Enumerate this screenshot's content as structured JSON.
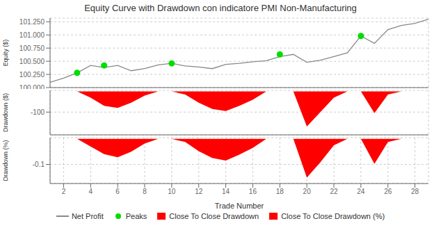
{
  "chart_data": [
    {
      "type": "line",
      "title": "Equity Curve with Drawdown con indicatore PMI Non-Manufacturing",
      "x": [
        1,
        2,
        3,
        4,
        5,
        6,
        7,
        8,
        9,
        10,
        11,
        12,
        13,
        14,
        15,
        16,
        17,
        18,
        19,
        20,
        21,
        22,
        23,
        24,
        25,
        26,
        27,
        28,
        29
      ],
      "xlim": [
        1,
        29
      ],
      "xticks": [
        2,
        4,
        6,
        8,
        10,
        12,
        14,
        16,
        18,
        20,
        22,
        24,
        26,
        28
      ],
      "ylim": [
        100.0,
        101.32
      ],
      "yticks": [
        {
          "value": 100.0,
          "label": "100.000"
        },
        {
          "value": 100.25,
          "label": "100.250"
        },
        {
          "value": 100.5,
          "label": "100.500"
        },
        {
          "value": 100.75,
          "label": "100.750"
        },
        {
          "value": 101.0,
          "label": "101.000"
        },
        {
          "value": 101.25,
          "label": "101.250"
        }
      ],
      "ylabel": "Equity ($)",
      "grid": true,
      "tick_labels": "y",
      "series": [
        {
          "name": "Net Profit",
          "type": "line",
          "color": "#888888",
          "values": [
            100.1,
            100.18,
            100.28,
            100.42,
            100.38,
            100.42,
            100.32,
            100.36,
            100.43,
            100.46,
            100.41,
            100.39,
            100.36,
            100.44,
            100.46,
            100.49,
            100.51,
            100.59,
            100.63,
            100.48,
            100.52,
            100.59,
            100.66,
            100.98,
            100.84,
            101.1,
            101.18,
            101.22,
            101.3
          ]
        },
        {
          "name": "Peaks",
          "type": "scatter",
          "color": "#00dd00",
          "x": [
            3,
            5,
            10,
            18,
            24
          ],
          "values": [
            100.28,
            100.42,
            100.46,
            100.63,
            100.98
          ]
        }
      ]
    },
    {
      "type": "area",
      "x": [
        1,
        2,
        3,
        4,
        5,
        6,
        7,
        8,
        9,
        10,
        11,
        12,
        13,
        14,
        15,
        16,
        17,
        18,
        19,
        20,
        21,
        22,
        23,
        24,
        25,
        26,
        27,
        28,
        29
      ],
      "xlim": [
        1,
        29
      ],
      "xticks": [
        2,
        4,
        6,
        8,
        10,
        12,
        14,
        16,
        18,
        20,
        22,
        24,
        26,
        28
      ],
      "ylim": [
        -210,
        5
      ],
      "yticks": [
        -100
      ],
      "ylabel": "Drawdown ($)",
      "grid": true,
      "tick_labels": "y",
      "series": [
        {
          "name": "Close To Close Drawdown",
          "type": "area",
          "color": "#ff0000",
          "values": [
            0,
            0,
            0,
            -30,
            -70,
            -80,
            -55,
            -20,
            0,
            0,
            -15,
            -55,
            -85,
            -95,
            -70,
            -40,
            0,
            0,
            0,
            -170,
            -100,
            -30,
            0,
            0,
            -105,
            -15,
            0,
            0,
            0
          ]
        }
      ]
    },
    {
      "type": "area",
      "x": [
        1,
        2,
        3,
        4,
        5,
        6,
        7,
        8,
        9,
        10,
        11,
        12,
        13,
        14,
        15,
        16,
        17,
        18,
        19,
        20,
        21,
        22,
        23,
        24,
        25,
        26,
        27,
        28,
        29
      ],
      "xlim": [
        1,
        29
      ],
      "xticks": [
        2,
        4,
        6,
        8,
        10,
        12,
        14,
        16,
        18,
        20,
        22,
        24,
        26,
        28
      ],
      "xlabel": "Trade Number",
      "ylim": [
        -0.175,
        0.005
      ],
      "yticks": [
        -0.1
      ],
      "ylabel": "Drawdown (%)",
      "grid": true,
      "legend": "bottom",
      "series": [
        {
          "name": "Close To Close Drawdown (%)",
          "type": "area",
          "color": "#ff0000",
          "values": [
            0,
            0,
            0,
            -0.03,
            -0.06,
            -0.072,
            -0.05,
            -0.018,
            0,
            0,
            -0.012,
            -0.048,
            -0.075,
            -0.085,
            -0.062,
            -0.035,
            0,
            0,
            0,
            -0.152,
            -0.092,
            -0.025,
            0,
            0,
            -0.098,
            -0.012,
            0,
            0,
            0
          ]
        }
      ]
    }
  ]
}
